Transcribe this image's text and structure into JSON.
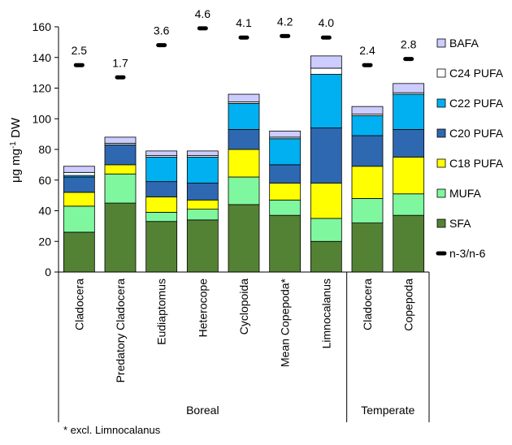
{
  "chart_data": {
    "type": "bar",
    "stacked": true,
    "ylabel": "μg mg",
    "ylabel_sup": "-1",
    "ylabel_suffix": " DW",
    "ylim": [
      0,
      160
    ],
    "yticks": [
      "0",
      "20",
      "40",
      "60",
      "80",
      "100",
      "120",
      "140",
      "160"
    ],
    "grid": false,
    "legend_position": "right",
    "categories": [
      "Cladocera",
      "Predatory Cladocera",
      "Eudiaptomus",
      "Heterocope",
      "Cyclopoida",
      "Mean Copepoda*",
      "Limnocalanus",
      "Cladocera",
      "Copepoda"
    ],
    "groups": [
      {
        "label": "Boreal",
        "categories": 7
      },
      {
        "label": "Temperate",
        "categories": 2
      }
    ],
    "series": [
      {
        "name": "SFA",
        "color": "#548235",
        "values": [
          26,
          45,
          33,
          34,
          44,
          37,
          20,
          32,
          37
        ]
      },
      {
        "name": "MUFA",
        "color": "#7ff79f",
        "values": [
          17,
          19,
          6,
          7,
          18,
          10,
          15,
          16,
          14
        ]
      },
      {
        "name": "C18 PUFA",
        "color": "#ffff00",
        "values": [
          9,
          6,
          10,
          6,
          18,
          11,
          23,
          21,
          24
        ]
      },
      {
        "name": "C20 PUFA",
        "color": "#2e68b0",
        "values": [
          10,
          13,
          10,
          11,
          13,
          12,
          36,
          20,
          18
        ]
      },
      {
        "name": "C22 PUFA",
        "color": "#00b0f0",
        "values": [
          1,
          0,
          16,
          17,
          17,
          17,
          35,
          13,
          23
        ]
      },
      {
        "name": "C24 PUFA",
        "color": "#ffffff",
        "values": [
          2,
          1,
          1,
          1,
          1,
          1,
          4,
          1,
          1
        ]
      },
      {
        "name": "BAFA",
        "color": "#ccccff",
        "values": [
          4,
          4,
          3,
          3,
          5,
          4,
          8,
          5,
          6
        ]
      }
    ],
    "ratio_series": {
      "name": "n-3/n-6",
      "positions": [
        135,
        127,
        148,
        159,
        153,
        154,
        153,
        135,
        139
      ],
      "labels": [
        "2.5",
        "1.7",
        "3.6",
        "4.6",
        "4.1",
        "4.2",
        "4.0",
        "2.4",
        "2.8"
      ]
    }
  },
  "footnote": "* excl. Limnocalanus"
}
